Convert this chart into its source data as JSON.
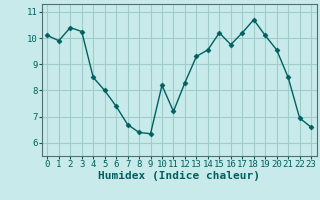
{
  "x": [
    0,
    1,
    2,
    3,
    4,
    5,
    6,
    7,
    8,
    9,
    10,
    11,
    12,
    13,
    14,
    15,
    16,
    17,
    18,
    19,
    20,
    21,
    22,
    23
  ],
  "y": [
    10.1,
    9.9,
    10.4,
    10.25,
    8.5,
    8.0,
    7.4,
    6.7,
    6.4,
    6.35,
    8.2,
    7.2,
    8.3,
    9.3,
    9.55,
    10.2,
    9.75,
    10.2,
    10.7,
    10.1,
    9.55,
    8.5,
    6.95,
    6.6
  ],
  "line_color": "#006060",
  "marker": "D",
  "markersize": 2.5,
  "linewidth": 1.0,
  "bg_color": "#c8eaea",
  "grid_color": "#a0cccc",
  "xlabel": "Humidex (Indice chaleur)",
  "xlabel_fontsize": 8,
  "xlabel_fontweight": "bold",
  "ylim": [
    5.5,
    11.3
  ],
  "xlim": [
    -0.5,
    23.5
  ],
  "yticks": [
    6,
    7,
    8,
    9,
    10,
    11
  ],
  "xticks": [
    0,
    1,
    2,
    3,
    4,
    5,
    6,
    7,
    8,
    9,
    10,
    11,
    12,
    13,
    14,
    15,
    16,
    17,
    18,
    19,
    20,
    21,
    22,
    23
  ],
  "tick_fontsize": 6.5,
  "spine_color": "#507070"
}
